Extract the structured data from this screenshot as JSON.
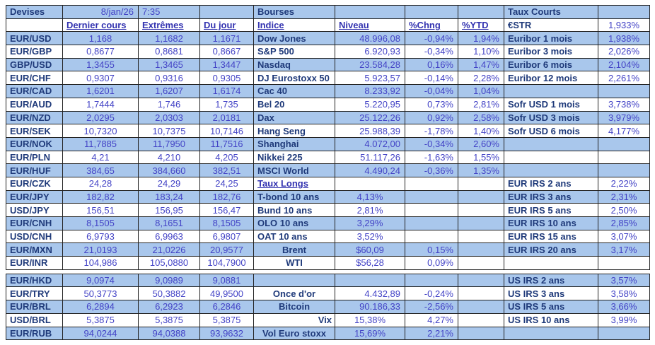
{
  "colors": {
    "row_band_blue": "#a9c7ec",
    "label_navy": "#1f3a7a",
    "value_violet": "#4343c6",
    "header_violet": "#3232b0",
    "border": "#222222"
  },
  "meta": {
    "date": "8/jan/26",
    "time": "7:35"
  },
  "devises": {
    "title": "Devises",
    "headers": [
      "Dernier cours",
      "Extrêmes",
      "Du jour"
    ],
    "rows": [
      {
        "pair": "EUR/USD",
        "last": "1,168",
        "extremes": "1,1682",
        "day": "1,1671"
      },
      {
        "pair": "EUR/GBP",
        "last": "0,8677",
        "extremes": "0,8681",
        "day": "0,8667"
      },
      {
        "pair": "GBP/USD",
        "last": "1,3455",
        "extremes": "1,3465",
        "day": "1,3447"
      },
      {
        "pair": "EUR/CHF",
        "last": "0,9307",
        "extremes": "0,9316",
        "day": "0,9305"
      },
      {
        "pair": "EUR/CAD",
        "last": "1,6201",
        "extremes": "1,6207",
        "day": "1,6174"
      },
      {
        "pair": "EUR/AUD",
        "last": "1,7444",
        "extremes": "1,746",
        "day": "1,735"
      },
      {
        "pair": "EUR/NZD",
        "last": "2,0295",
        "extremes": "2,0303",
        "day": "2,0181"
      },
      {
        "pair": "EUR/SEK",
        "last": "10,7320",
        "extremes": "10,7375",
        "day": "10,7146"
      },
      {
        "pair": "EUR/NOK",
        "last": "11,7885",
        "extremes": "11,7950",
        "day": "11,7516"
      },
      {
        "pair": "EUR/PLN",
        "last": "4,21",
        "extremes": "4,210",
        "day": "4,205"
      },
      {
        "pair": "EUR/HUF",
        "last": "384,65",
        "extremes": "384,660",
        "day": "382,51"
      },
      {
        "pair": "EUR/CZK",
        "last": "24,28",
        "extremes": "24,29",
        "day": "24,25"
      },
      {
        "pair": "EUR/JPY",
        "last": "182,82",
        "extremes": "183,24",
        "day": "182,76"
      },
      {
        "pair": "USD/JPY",
        "last": "156,51",
        "extremes": "156,95",
        "day": "156,47"
      },
      {
        "pair": "EUR/CNH",
        "last": "8,1505",
        "extremes": "8,1651",
        "day": "8,1505"
      },
      {
        "pair": "USD/CNH",
        "last": "6,9793",
        "extremes": "6,9963",
        "day": "6,9807"
      },
      {
        "pair": "EUR/MXN",
        "last": "21,0193",
        "extremes": "21,0226",
        "day": "20,9577"
      },
      {
        "pair": "EUR/INR",
        "last": "104,986",
        "extremes": "105,0880",
        "day": "104,7900"
      },
      {
        "pair": "EUR/HKD",
        "last": "9,0974",
        "extremes": "9,0989",
        "day": "9,0881"
      },
      {
        "pair": "EUR/TRY",
        "last": "50,3773",
        "extremes": "50,3882",
        "day": "49,9500"
      },
      {
        "pair": "EUR/BRL",
        "last": "6,2894",
        "extremes": "6,2923",
        "day": "6,2846"
      },
      {
        "pair": "USD/BRL",
        "last": "5,3875",
        "extremes": "5,3875",
        "day": "5,3875"
      },
      {
        "pair": "EUR/RUB",
        "last": "94,0244",
        "extremes": "94,0388",
        "day": "93,9632"
      }
    ]
  },
  "bourses": {
    "title": "Bourses",
    "headers": [
      "Indice",
      "Niveau",
      "%Chng",
      "%YTD"
    ],
    "rows": [
      {
        "index": "Dow Jones",
        "level": "48.996,08",
        "chng": "-0,94%",
        "ytd": "1,94%"
      },
      {
        "index": "S&P 500",
        "level": "6.920,93",
        "chng": "-0,34%",
        "ytd": "1,10%"
      },
      {
        "index": "Nasdaq",
        "level": "23.584,28",
        "chng": "0,16%",
        "ytd": "1,47%"
      },
      {
        "index": "DJ Eurostoxx 50",
        "level": "5.923,57",
        "chng": "-0,14%",
        "ytd": "2,28%"
      },
      {
        "index": "Cac 40",
        "level": "8.233,92",
        "chng": "-0,04%",
        "ytd": "1,04%"
      },
      {
        "index": "Bel 20",
        "level": "5.220,95",
        "chng": "0,73%",
        "ytd": "2,81%"
      },
      {
        "index": "Dax",
        "level": "25.122,26",
        "chng": "0,92%",
        "ytd": "2,58%"
      },
      {
        "index": "Hang Seng",
        "level": "25.988,39",
        "chng": "-1,78%",
        "ytd": "1,40%"
      },
      {
        "index": "Shanghai",
        "level": "4.072,00",
        "chng": "-0,34%",
        "ytd": "2,60%"
      },
      {
        "index": "Nikkei 225",
        "level": "51.117,26",
        "chng": "-1,63%",
        "ytd": "1,55%"
      },
      {
        "index": "MSCI World",
        "level": "4.490,24",
        "chng": "-0,36%",
        "ytd": "1,35%"
      }
    ]
  },
  "taux_longs": {
    "title": "Taux Longs",
    "rows": [
      {
        "name": "T-bond 10 ans",
        "value": "4,13%"
      },
      {
        "name": "Bund 10 ans",
        "value": "2,81%"
      },
      {
        "name": "OLO 10 ans",
        "value": "3,29%"
      },
      {
        "name": "OAT 10 ans",
        "value": "3,52%"
      }
    ]
  },
  "others": [
    {
      "name": "Brent",
      "level": "$60,09",
      "chng": "0,15%"
    },
    {
      "name": "WTI",
      "level": "$56,28",
      "chng": "0,09%"
    },
    {
      "name": "Once d'or",
      "level": "4.432,89",
      "chng": "-0,24%"
    },
    {
      "name": "Bitcoin",
      "level": "90.186,33",
      "chng": "-2,56%"
    },
    {
      "name": "Vix",
      "level": "15,38%",
      "chng": "4,27%"
    },
    {
      "name": "Vol Euro stoxx",
      "level": "15,69%",
      "chng": "2,21%"
    }
  ],
  "taux_courts": {
    "title": "Taux Courts",
    "estr": {
      "name": "€STR",
      "value": "1,933%"
    },
    "euribor": [
      {
        "name": "Euribor 1 mois",
        "value": "1,938%"
      },
      {
        "name": "Euribor 3 mois",
        "value": "2,026%"
      },
      {
        "name": "Euribor 6 mois",
        "value": "2,104%"
      },
      {
        "name": "Euribor 12 mois",
        "value": "2,261%"
      }
    ],
    "sofr": [
      {
        "name": "Sofr USD 1 mois",
        "value": "3,738%"
      },
      {
        "name": "Sofr USD 3 mois",
        "value": "3,979%"
      },
      {
        "name": "Sofr USD 6 mois",
        "value": "4,177%"
      }
    ],
    "eur_irs": [
      {
        "name": "EUR IRS 2 ans",
        "value": "2,22%"
      },
      {
        "name": "EUR IRS 3 ans",
        "value": "2,31%"
      },
      {
        "name": "EUR IRS 5 ans",
        "value": "2,50%"
      },
      {
        "name": "EUR IRS 10 ans",
        "value": "2,85%"
      },
      {
        "name": "EUR IRS 15 ans",
        "value": "3,07%"
      },
      {
        "name": "EUR IRS 20 ans",
        "value": "3,17%"
      }
    ],
    "us_irs": [
      {
        "name": "US IRS 2 ans",
        "value": "3,57%"
      },
      {
        "name": "US IRS 3 ans",
        "value": "3,58%"
      },
      {
        "name": "US IRS 5 ans",
        "value": "3,66%"
      },
      {
        "name": "US IRS 10 ans",
        "value": "3,99%"
      }
    ]
  }
}
